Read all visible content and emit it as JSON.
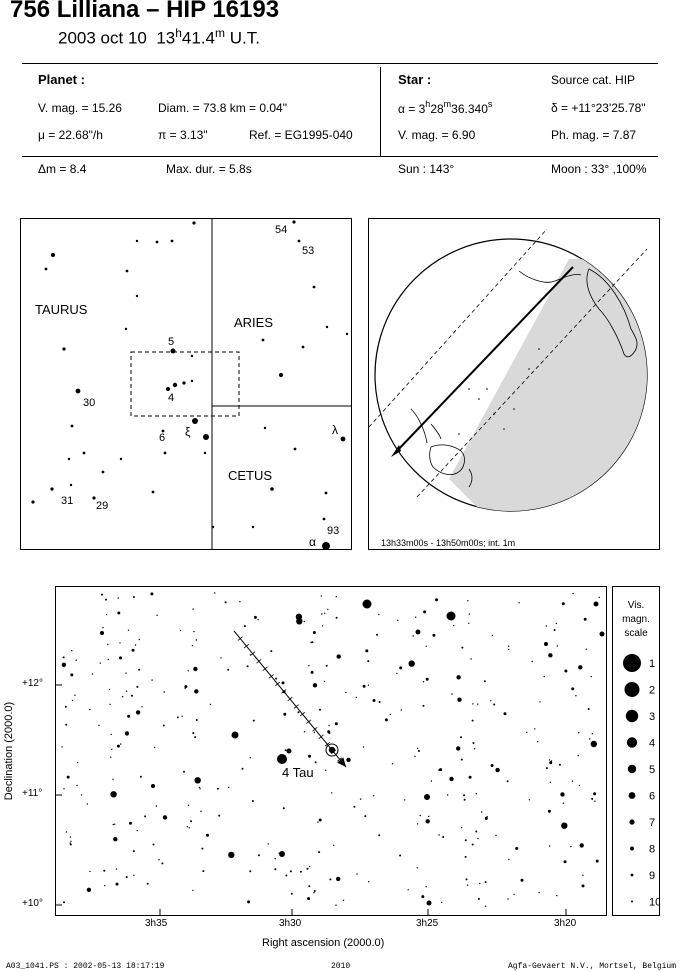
{
  "header": {
    "title": "756 Lilliana  –  HIP 16193",
    "date": "2003 oct 10",
    "time_h": "13",
    "time_sup_h": "h",
    "time_m": "41.4",
    "time_sup_m": "m",
    "time_suffix": " U.T."
  },
  "planet": {
    "heading": "Planet :",
    "vmag": "V. mag. = 15.26",
    "diam": "Diam. = 73.8 km = 0.04\"",
    "mu": "μ =  22.68\"/h",
    "pi": "π =  3.13\"",
    "ref": "Ref. = EG1995-040"
  },
  "star": {
    "heading": "Star :",
    "source": "Source cat.  HIP",
    "alpha_prefix": "α = 3",
    "alpha_h": "h",
    "alpha_mid": "28",
    "alpha_m": "m",
    "alpha_rest": "36.340",
    "alpha_s": "s",
    "delta": "δ = +11°23'25.78\"",
    "vmag": "V. mag. =  6.90",
    "phmag": "Ph. mag. =  7.87"
  },
  "summary": {
    "dm": "Δm = 8.4",
    "maxdur": "Max. dur. = 5.8s",
    "sun": "Sun : 143°",
    "moon": "Moon :  33° ,100%"
  },
  "finder": {
    "constellations": [
      "TAURUS",
      "ARIES",
      "CETUS"
    ],
    "star_labels": [
      "54",
      "53",
      "5",
      "4",
      "30",
      "6",
      "ξ",
      "λ",
      "31",
      "29",
      "93",
      "α"
    ]
  },
  "globe": {
    "caption": "13h33m00s - 13h50m00s; int.  1m"
  },
  "chart": {
    "star_label": "4 Tau",
    "xlabel": "Right ascension (2000.0)",
    "ylabel": "Declination (2000.0)",
    "x_ticks": [
      "3h35",
      "3h30",
      "3h25",
      "3h20"
    ],
    "y_ticks": [
      "+12°",
      "+11°",
      "+10°"
    ]
  },
  "scale": {
    "title_lines": [
      "Vis.",
      "magn.",
      "scale"
    ],
    "values": [
      "1",
      "2",
      "3",
      "4",
      "5",
      "6",
      "7",
      "8",
      "9",
      "10"
    ]
  },
  "footer": {
    "left": "A03_1041.PS : 2002-05-13 18:17:19",
    "center": "2010",
    "right": "Agfa-Gevaert N.V., Mortsel, Belgium"
  }
}
